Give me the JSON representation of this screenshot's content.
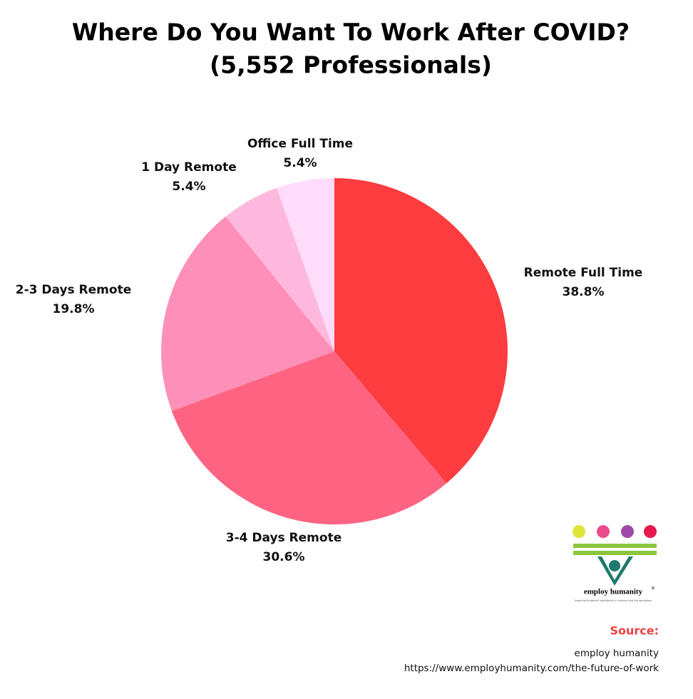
{
  "chart_data": {
    "type": "pie",
    "title": "Where Do You Want To Work After COVID?",
    "subtitle": "(5,552 Professionals)",
    "categories": [
      "Remote Full Time",
      "3-4 Days Remote",
      "2-3 Days Remote",
      "1 Day Remote",
      "Office Full Time"
    ],
    "values": [
      38.8,
      30.6,
      19.8,
      5.4,
      5.4
    ],
    "value_labels": [
      "38.8%",
      "30.6%",
      "19.8%",
      "5.4%",
      "5.4%"
    ],
    "colors": [
      "#fc3c3f",
      "#fe6482",
      "#fe8fb8",
      "#feb8de",
      "#fedcfa"
    ]
  },
  "logo": {
    "name": "employ humanity",
    "mark": "®",
    "tagline": "Inspiring Emotional Intelligence in humans and the workplace"
  },
  "source": {
    "heading": "Source:",
    "name": "employ humanity",
    "url": "https://www.employhumanity.com/the-future-of-work"
  }
}
